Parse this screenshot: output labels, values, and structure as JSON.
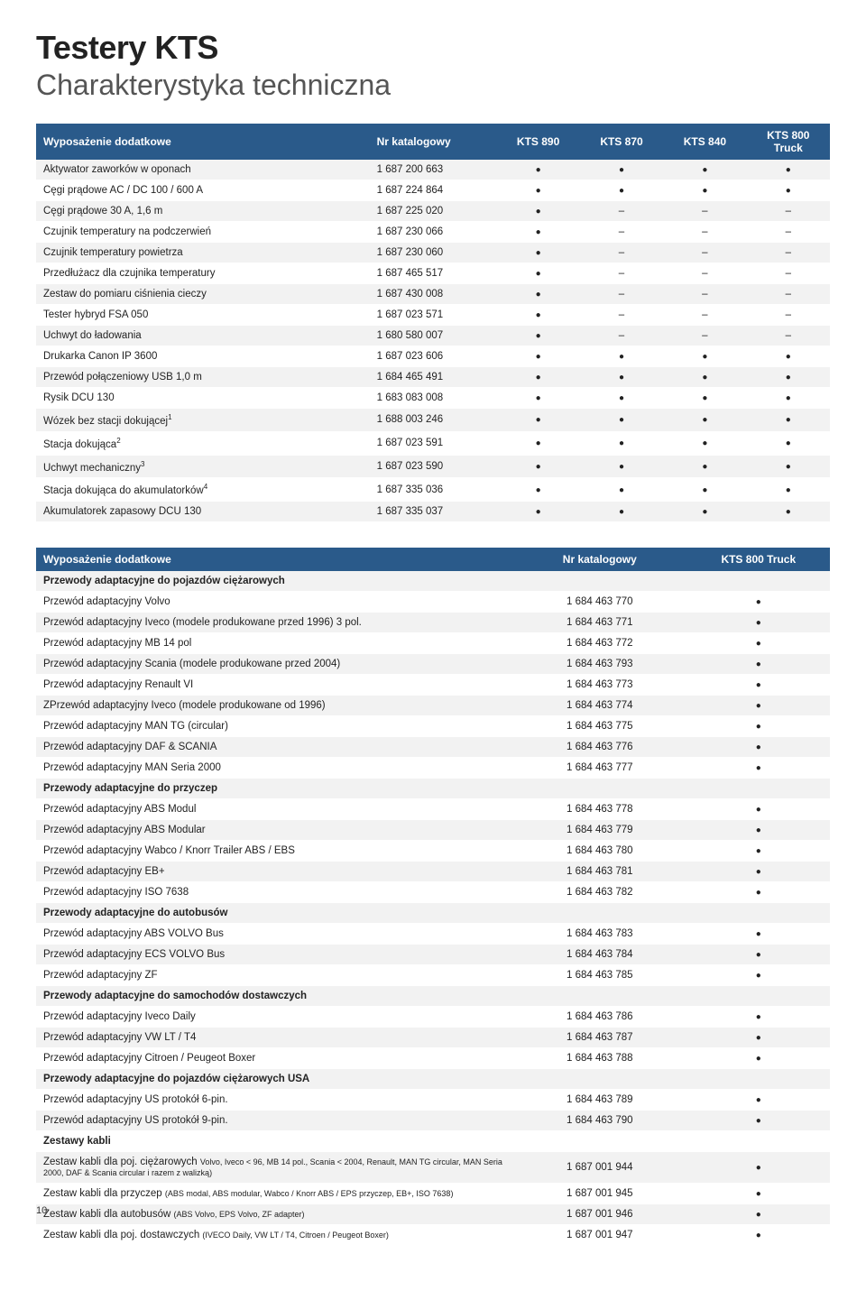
{
  "title": "Testery KTS",
  "subtitle": "Charakterystyka techniczna",
  "page_number": "10",
  "colors": {
    "header_bg": "#2a5a8a",
    "header_fg": "#ffffff",
    "row_alt": "#f2f2f2"
  },
  "table1": {
    "headers": [
      "Wyposażenie dodatkowe",
      "Nr katalogowy",
      "KTS 890",
      "KTS 870",
      "KTS 840",
      "KTS 800 Truck"
    ],
    "rows": [
      {
        "label": "Aktywator zaworków w oponach",
        "num": "1 687 200 663",
        "marks": [
          "dot",
          "dot",
          "dot",
          "dot"
        ]
      },
      {
        "label": "Cęgi prądowe AC / DC 100 / 600 A",
        "num": "1 687 224 864",
        "marks": [
          "dot",
          "dot",
          "dot",
          "dot"
        ]
      },
      {
        "label": "Cęgi prądowe 30 A, 1,6 m",
        "num": "1 687 225 020",
        "marks": [
          "dot",
          "dash",
          "dash",
          "dash"
        ]
      },
      {
        "label": "Czujnik temperatury na podczerwień",
        "num": "1 687 230 066",
        "marks": [
          "dot",
          "dash",
          "dash",
          "dash"
        ]
      },
      {
        "label": "Czujnik temperatury powietrza",
        "num": "1 687 230 060",
        "marks": [
          "dot",
          "dash",
          "dash",
          "dash"
        ]
      },
      {
        "label": "Przedłużacz dla czujnika temperatury",
        "num": "1 687 465 517",
        "marks": [
          "dot",
          "dash",
          "dash",
          "dash"
        ]
      },
      {
        "label": "Zestaw do pomiaru ciśnienia cieczy",
        "num": "1 687 430 008",
        "marks": [
          "dot",
          "dash",
          "dash",
          "dash"
        ]
      },
      {
        "label": "Tester hybryd FSA 050",
        "num": "1 687 023 571",
        "marks": [
          "dot",
          "dash",
          "dash",
          "dash"
        ]
      },
      {
        "label": "Uchwyt do ładowania",
        "num": "1 680 580 007",
        "marks": [
          "dot",
          "dash",
          "dash",
          "dash"
        ]
      },
      {
        "label": "Drukarka Canon IP 3600",
        "num": "1 687 023 606",
        "marks": [
          "dot",
          "dot",
          "dot",
          "dot"
        ]
      },
      {
        "label": "Przewód połączeniowy USB 1,0 m",
        "num": "1 684 465 491",
        "marks": [
          "dot",
          "dot",
          "dot",
          "dot"
        ]
      },
      {
        "label": "Rysik DCU 130",
        "num": "1 683 083 008",
        "marks": [
          "dot",
          "dot",
          "dot",
          "dot"
        ]
      },
      {
        "label": "Wózek bez stacji dokującej",
        "sup": "1",
        "num": "1 688 003 246",
        "marks": [
          "dot",
          "dot",
          "dot",
          "dot"
        ]
      },
      {
        "label": "Stacja dokująca",
        "sup": "2",
        "num": "1 687 023 591",
        "marks": [
          "dot",
          "dot",
          "dot",
          "dot"
        ]
      },
      {
        "label": "Uchwyt mechaniczny",
        "sup": "3",
        "num": "1 687 023 590",
        "marks": [
          "dot",
          "dot",
          "dot",
          "dot"
        ]
      },
      {
        "label": "Stacja dokująca do akumulatorków",
        "sup": "4",
        "num": "1 687 335 036",
        "marks": [
          "dot",
          "dot",
          "dot",
          "dot"
        ]
      },
      {
        "label": "Akumulatorek zapasowy DCU 130",
        "num": "1 687 335 037",
        "marks": [
          "dot",
          "dot",
          "dot",
          "dot"
        ]
      }
    ]
  },
  "table2": {
    "headers": [
      "Wyposażenie dodatkowe",
      "Nr katalogowy",
      "KTS 800 Truck"
    ],
    "rows": [
      {
        "section": "Przewody adaptacyjne do pojazdów ciężarowych"
      },
      {
        "label": "Przewód adaptacyjny Volvo",
        "num": "1 684 463 770",
        "mark": "dot"
      },
      {
        "label": "Przewód adaptacyjny Iveco (modele produkowane przed 1996) 3 pol.",
        "num": "1 684 463 771",
        "mark": "dot"
      },
      {
        "label": "Przewód adaptacyjny MB 14 pol",
        "num": "1 684 463 772",
        "mark": "dot"
      },
      {
        "label": "Przewód adaptacyjny Scania (modele produkowane przed 2004)",
        "num": "1 684 463 793",
        "mark": "dot"
      },
      {
        "label": "Przewód adaptacyjny Renault VI",
        "num": "1 684 463 773",
        "mark": "dot"
      },
      {
        "label": "ZPrzewód adaptacyjny Iveco (modele produkowane od 1996)",
        "num": "1 684 463 774",
        "mark": "dot"
      },
      {
        "label": "Przewód adaptacyjny MAN TG (circular)",
        "num": "1 684 463 775",
        "mark": "dot"
      },
      {
        "label": "Przewód adaptacyjny DAF & SCANIA",
        "num": "1 684 463 776",
        "mark": "dot"
      },
      {
        "label": "Przewód adaptacyjny MAN Seria 2000",
        "num": "1 684 463 777",
        "mark": "dot"
      },
      {
        "section": "Przewody adaptacyjne do przyczep"
      },
      {
        "label": "Przewód adaptacyjny ABS Modul",
        "num": "1 684 463 778",
        "mark": "dot"
      },
      {
        "label": "Przewód adaptacyjny ABS Modular",
        "num": "1 684 463 779",
        "mark": "dot"
      },
      {
        "label": "Przewód adaptacyjny Wabco / Knorr Trailer ABS / EBS",
        "num": "1 684 463 780",
        "mark": "dot"
      },
      {
        "label": "Przewód adaptacyjny EB+",
        "num": "1 684 463 781",
        "mark": "dot"
      },
      {
        "label": "Przewód adaptacyjny ISO 7638",
        "num": "1 684 463 782",
        "mark": "dot"
      },
      {
        "section": "Przewody adaptacyjne do autobusów"
      },
      {
        "label": "Przewód adaptacyjny ABS VOLVO Bus",
        "num": "1 684 463 783",
        "mark": "dot"
      },
      {
        "label": "Przewód adaptacyjny ECS VOLVO Bus",
        "num": "1 684 463 784",
        "mark": "dot"
      },
      {
        "label": "Przewód adaptacyjny ZF",
        "num": "1 684 463 785",
        "mark": "dot"
      },
      {
        "section": "Przewody adaptacyjne do samochodów dostawczych"
      },
      {
        "label": "Przewód adaptacyjny Iveco Daily",
        "num": "1 684 463 786",
        "mark": "dot"
      },
      {
        "label": "Przewód adaptacyjny VW LT / T4",
        "num": "1 684 463 787",
        "mark": "dot"
      },
      {
        "label": "Przewód adaptacyjny Citroen / Peugeot Boxer",
        "num": "1 684 463 788",
        "mark": "dot"
      },
      {
        "section": "Przewody adaptacyjne do pojazdów ciężarowych USA"
      },
      {
        "label": "Przewód adaptacyjny US protokół 6-pin.",
        "num": "1 684 463 789",
        "mark": "dot"
      },
      {
        "label": "Przewód adaptacyjny US protokół 9-pin.",
        "num": "1 684 463 790",
        "mark": "dot"
      },
      {
        "section": "Zestawy kabli"
      },
      {
        "label": "Zestaw kabli dla poj. ciężarowych",
        "small": "Volvo, Iveco < 96, MB 14 pol., Scania < 2004, Renault, MAN TG circular, MAN Seria 2000, DAF & Scania circular i razem z walizką)",
        "num": "1 687 001 944",
        "mark": "dot"
      },
      {
        "label": "Zestaw kabli dla przyczep",
        "small": "(ABS modal, ABS modular, Wabco / Knorr ABS / EPS przyczep, EB+, ISO 7638)",
        "num": "1 687 001 945",
        "mark": "dot"
      },
      {
        "label": "Zestaw kabli dla autobusów",
        "small": "(ABS Volvo, EPS Volvo, ZF adapter)",
        "num": "1 687 001 946",
        "mark": "dot"
      },
      {
        "label": "Zestaw kabli dla poj. dostawczych",
        "small": "(IVECO Daily, VW LT / T4, Citroen / Peugeot Boxer)",
        "num": "1 687 001 947",
        "mark": "dot"
      }
    ]
  }
}
